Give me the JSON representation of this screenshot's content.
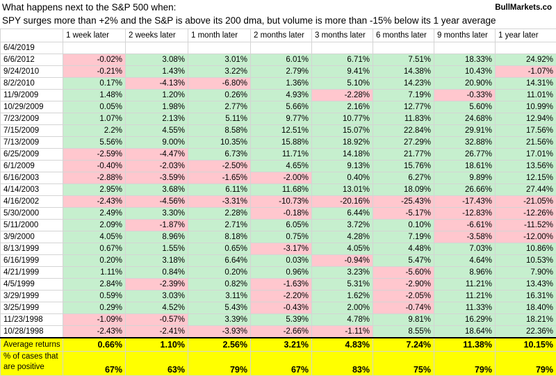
{
  "header": {
    "title": "What happens next to the S&P 500 when:",
    "subtitle": "SPY surges more than +2% and the S&P is above its 200 dma, but volume is more than -15% below its 1 year average",
    "brand": "BullMarkets.co"
  },
  "columns": [
    "1 week later",
    "2 weeks later",
    "1 month later",
    "2 months later",
    "3 months later",
    "6 months later",
    "9 months later",
    "1 year later"
  ],
  "colors": {
    "positive": "#c6efce",
    "negative": "#ffc7ce",
    "summary": "#ffff00"
  },
  "first_date": "6/4/2019",
  "rows": [
    {
      "date": "6/6/2012",
      "values": [
        "-0.02%",
        "3.08%",
        "3.01%",
        "6.01%",
        "6.71%",
        "7.51%",
        "18.33%",
        "24.92%"
      ]
    },
    {
      "date": "9/24/2010",
      "values": [
        "-0.21%",
        "1.43%",
        "3.22%",
        "2.79%",
        "9.41%",
        "14.38%",
        "10.43%",
        "-1.07%"
      ]
    },
    {
      "date": "8/2/2010",
      "values": [
        "0.17%",
        "-4.13%",
        "-6.80%",
        "1.36%",
        "5.10%",
        "14.23%",
        "20.90%",
        "14.31%"
      ]
    },
    {
      "date": "11/9/2009",
      "values": [
        "1.48%",
        "1.20%",
        "0.26%",
        "4.93%",
        "-2.28%",
        "7.19%",
        "-0.33%",
        "11.01%"
      ]
    },
    {
      "date": "10/29/2009",
      "values": [
        "0.05%",
        "1.98%",
        "2.77%",
        "5.66%",
        "2.16%",
        "12.77%",
        "5.60%",
        "10.99%"
      ]
    },
    {
      "date": "7/23/2009",
      "values": [
        "1.07%",
        "2.13%",
        "5.11%",
        "9.77%",
        "10.77%",
        "11.83%",
        "24.68%",
        "12.94%"
      ]
    },
    {
      "date": "7/15/2009",
      "values": [
        "2.2%",
        "4.55%",
        "8.58%",
        "12.51%",
        "15.07%",
        "22.84%",
        "29.91%",
        "17.56%"
      ]
    },
    {
      "date": "7/13/2009",
      "values": [
        "5.56%",
        "9.00%",
        "10.35%",
        "15.88%",
        "18.92%",
        "27.29%",
        "32.88%",
        "21.56%"
      ]
    },
    {
      "date": "6/25/2009",
      "values": [
        "-2.59%",
        "-4.47%",
        "6.73%",
        "11.71%",
        "14.18%",
        "21.77%",
        "26.77%",
        "17.01%"
      ]
    },
    {
      "date": "6/1/2009",
      "values": [
        "-0.40%",
        "-2.03%",
        "-2.50%",
        "4.65%",
        "9.13%",
        "15.76%",
        "18.61%",
        "13.56%"
      ]
    },
    {
      "date": "6/16/2003",
      "values": [
        "-2.88%",
        "-3.59%",
        "-1.65%",
        "-2.00%",
        "0.40%",
        "6.27%",
        "9.89%",
        "12.15%"
      ]
    },
    {
      "date": "4/14/2003",
      "values": [
        "2.95%",
        "3.68%",
        "6.11%",
        "11.68%",
        "13.01%",
        "18.09%",
        "26.66%",
        "27.44%"
      ]
    },
    {
      "date": "4/16/2002",
      "values": [
        "-2.43%",
        "-4.56%",
        "-3.31%",
        "-10.73%",
        "-20.16%",
        "-25.43%",
        "-17.43%",
        "-21.05%"
      ]
    },
    {
      "date": "5/30/2000",
      "values": [
        "2.49%",
        "3.30%",
        "2.28%",
        "-0.18%",
        "6.44%",
        "-5.17%",
        "-12.83%",
        "-12.26%"
      ]
    },
    {
      "date": "5/11/2000",
      "values": [
        "2.09%",
        "-1.87%",
        "2.71%",
        "6.05%",
        "3.72%",
        "0.10%",
        "-6.61%",
        "-11.52%"
      ]
    },
    {
      "date": "3/9/2000",
      "values": [
        "4.05%",
        "8.96%",
        "8.18%",
        "0.75%",
        "4.28%",
        "7.19%",
        "-3.58%",
        "-12.00%"
      ]
    },
    {
      "date": "8/13/1999",
      "values": [
        "0.67%",
        "1.55%",
        "0.65%",
        "-3.17%",
        "4.05%",
        "4.48%",
        "7.03%",
        "10.86%"
      ]
    },
    {
      "date": "6/16/1999",
      "values": [
        "0.20%",
        "3.18%",
        "6.64%",
        "0.03%",
        "-0.94%",
        "5.47%",
        "4.64%",
        "10.53%"
      ]
    },
    {
      "date": "4/21/1999",
      "values": [
        "1.11%",
        "0.84%",
        "0.20%",
        "0.96%",
        "3.23%",
        "-5.60%",
        "8.96%",
        "7.90%"
      ]
    },
    {
      "date": "4/5/1999",
      "values": [
        "2.84%",
        "-2.39%",
        "0.82%",
        "-1.63%",
        "5.31%",
        "-2.90%",
        "11.21%",
        "13.43%"
      ]
    },
    {
      "date": "3/29/1999",
      "values": [
        "0.59%",
        "3.03%",
        "3.11%",
        "-2.20%",
        "1.62%",
        "-2.05%",
        "11.21%",
        "16.31%"
      ]
    },
    {
      "date": "3/25/1999",
      "values": [
        "0.29%",
        "4.52%",
        "5.43%",
        "-0.43%",
        "2.00%",
        "-0.74%",
        "11.33%",
        "18.40%"
      ]
    },
    {
      "date": "11/23/1998",
      "values": [
        "-1.09%",
        "-0.57%",
        "3.39%",
        "5.39%",
        "4.78%",
        "9.81%",
        "16.29%",
        "18.21%"
      ]
    },
    {
      "date": "10/28/1998",
      "values": [
        "-2.43%",
        "-2.41%",
        "-3.93%",
        "-2.66%",
        "-1.11%",
        "8.55%",
        "18.64%",
        "22.36%"
      ]
    }
  ],
  "summary": {
    "average_label": "Average returns",
    "average_values": [
      "0.66%",
      "1.10%",
      "2.56%",
      "3.21%",
      "4.83%",
      "7.24%",
      "11.38%",
      "10.15%"
    ],
    "positive_label": "% of cases that are positive",
    "positive_values": [
      "67%",
      "63%",
      "79%",
      "67%",
      "83%",
      "75%",
      "79%",
      "79%"
    ]
  }
}
